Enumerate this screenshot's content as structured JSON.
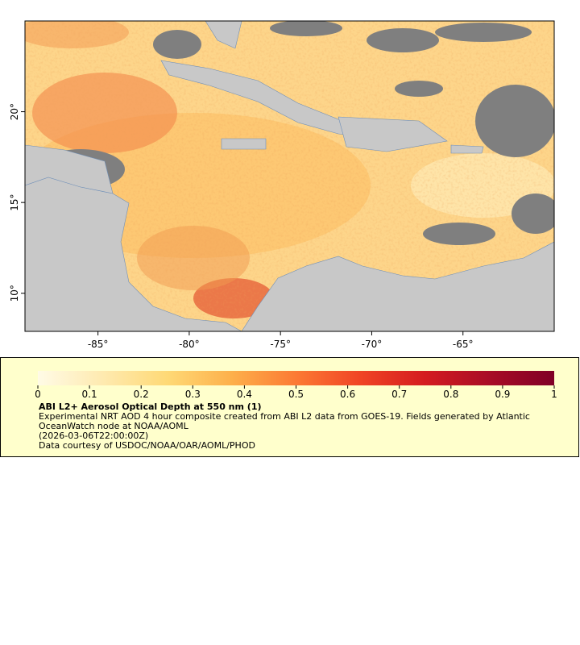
{
  "map": {
    "xlim": [
      -89,
      -60
    ],
    "ylim": [
      7.9,
      25
    ],
    "xticks": [
      {
        "value": -85,
        "label": "-85°"
      },
      {
        "value": -80,
        "label": "-80°"
      },
      {
        "value": -75,
        "label": "-75°"
      },
      {
        "value": -70,
        "label": "-70°"
      },
      {
        "value": -65,
        "label": "-65°"
      }
    ],
    "yticks": [
      {
        "value": 10,
        "label": "10°"
      },
      {
        "value": 15,
        "label": "15°"
      },
      {
        "value": 20,
        "label": "20°"
      }
    ]
  },
  "legend": {
    "colorbar": {
      "lim": [
        0,
        1
      ],
      "ticks": [
        0,
        0.1,
        0.2,
        0.3,
        0.4,
        0.5,
        0.6,
        0.7,
        0.8,
        0.9,
        1
      ],
      "colors": [
        "#fffbe6",
        "#feeab0",
        "#fed976",
        "#fdb04b",
        "#fc7a34",
        "#f04424",
        "#d41c20",
        "#a80c26",
        "#800026"
      ]
    },
    "title": "ABI L2+ Aerosol Optical Depth at 550 nm (1)",
    "description": "Experimental NRT AOD 4 hour composite created from ABI L2 data from GOES-19. Fields generated by Atlantic OceanWatch node at NOAA/AOML",
    "timestamp": "(2026-03-06T22:00:00Z)",
    "credit": "Data courtesy of USDOC/NOAA/OAR/AOML/PHOD"
  }
}
